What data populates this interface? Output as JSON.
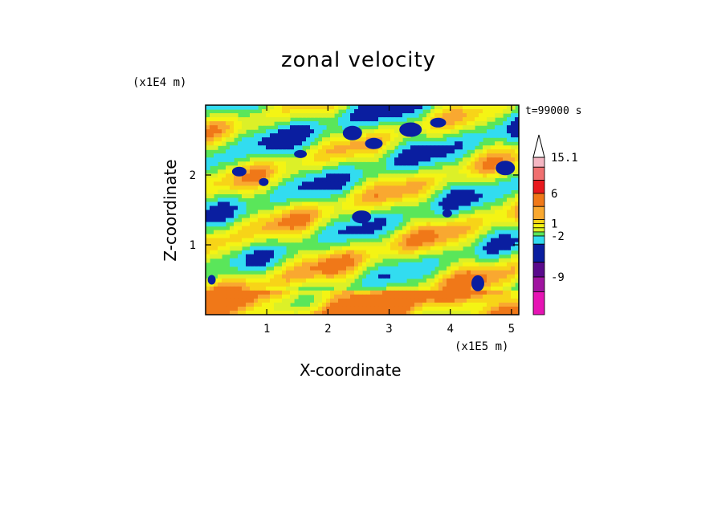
{
  "chart_data": {
    "type": "heatmap",
    "title": "zonal velocity",
    "xlabel": "X-coordinate",
    "ylabel": "Z-coordinate",
    "x_unit_label": "(x1E5 m)",
    "y_unit_label": "(x1E4 m)",
    "time_label": "t=99000 s",
    "xlim": [
      0,
      5.12
    ],
    "ylim": [
      0,
      3.0
    ],
    "xticks": [
      "1",
      "2",
      "3",
      "4",
      "5"
    ],
    "xtick_values": [
      1,
      2,
      3,
      4,
      5
    ],
    "yticks": [
      "1",
      "2"
    ],
    "ytick_values": [
      1,
      2
    ],
    "colorbar": {
      "labels": [
        "15.1",
        "6",
        "1",
        "-2",
        "-9"
      ],
      "levels": [
        15.1,
        12,
        9,
        6,
        3,
        2,
        1,
        0,
        -1,
        -2,
        -3,
        -6,
        -9,
        -12
      ],
      "colors": [
        "#f4b6c2",
        "#f07070",
        "#e8191e",
        "#f07818",
        "#f9a830",
        "#f7d418",
        "#f4f414",
        "#dcf028",
        "#5ae65a",
        "#32dcf0",
        "#0a1ea0",
        "#5a0a8c",
        "#a014a0",
        "#e614b4"
      ],
      "extend_top": true
    }
  }
}
